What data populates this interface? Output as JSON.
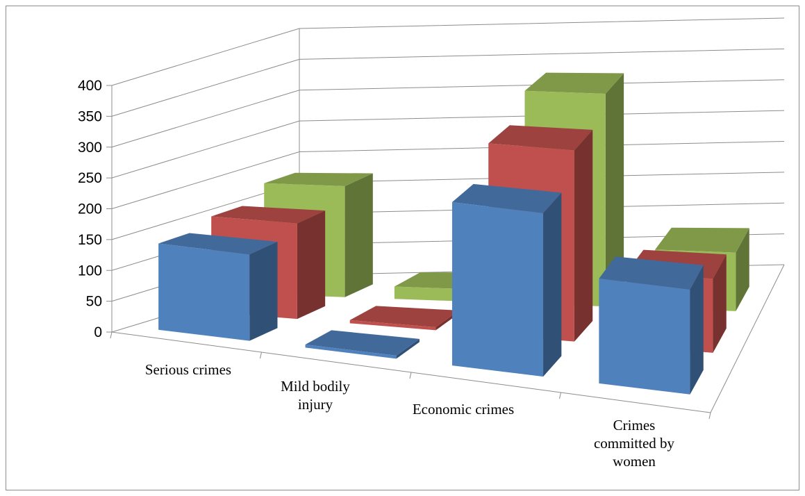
{
  "chart_data": {
    "type": "bar",
    "style": "3d-column",
    "categories": [
      "Serious crimes",
      "Mild bodily\ninjury",
      "Economic crimes",
      "Crimes\ncommitted by\nwomen"
    ],
    "series": [
      {
        "color": "#4f81bd",
        "values": [
          140,
          5,
          265,
          170
        ]
      },
      {
        "color": "#c0504d",
        "values": [
          155,
          5,
          310,
          120
        ]
      },
      {
        "color": "#9bbb59",
        "values": [
          180,
          20,
          345,
          95
        ]
      }
    ],
    "yticks": [
      "0",
      "50",
      "100",
      "150",
      "200",
      "250",
      "300",
      "350",
      "400"
    ],
    "ylim": [
      0,
      400
    ],
    "grid": true,
    "legend": "none"
  }
}
